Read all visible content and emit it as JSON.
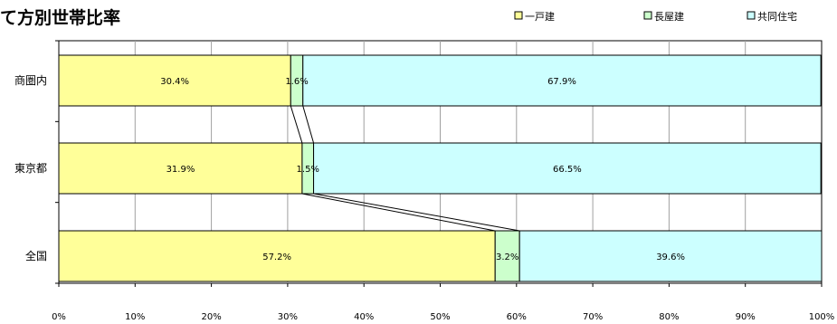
{
  "chart_data": {
    "type": "bar",
    "orientation": "horizontal",
    "stacked": true,
    "title": "て方別世帯比率",
    "categories": [
      "商圏内",
      "東京都",
      "全国"
    ],
    "series": [
      {
        "name": "一戸建",
        "color": "#ffff99",
        "values": [
          30.4,
          31.9,
          57.2
        ],
        "labels": [
          "30.4%",
          "31.9%",
          "57.2%"
        ]
      },
      {
        "name": "長屋建",
        "color": "#ccffcc",
        "values": [
          1.6,
          1.5,
          3.2
        ],
        "labels": [
          "1.6%",
          "1.5%",
          "3.2%"
        ]
      },
      {
        "name": "共同住宅",
        "color": "#ccffff",
        "values": [
          67.9,
          66.5,
          39.6
        ],
        "labels": [
          "67.9%",
          "66.5%",
          "39.6%"
        ]
      }
    ],
    "x_ticks": [
      "0%",
      "10%",
      "20%",
      "30%",
      "40%",
      "50%",
      "60%",
      "70%",
      "80%",
      "90%",
      "100%"
    ],
    "xlim": [
      0,
      100
    ],
    "grid": true,
    "legend_position": "top-right",
    "series_lines": true
  }
}
